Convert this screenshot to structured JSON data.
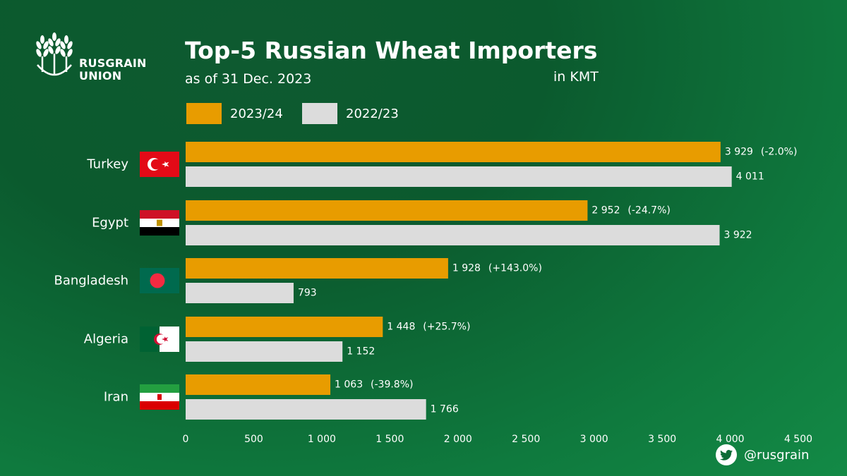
{
  "brand": {
    "line1": "RUSGRAIN",
    "line2": "UNION"
  },
  "header": {
    "title": "Top-5 Russian Wheat Importers",
    "subtitle": "as of 31 Dec. 2023",
    "unit": "in KMT"
  },
  "legend": [
    {
      "label": "2023/24",
      "color": "#e89c00"
    },
    {
      "label": "2022/23",
      "color": "#dcdcdc"
    }
  ],
  "footer": {
    "handle": "@rusgrain",
    "icon": "twitter-icon"
  },
  "chart_data": {
    "type": "bar",
    "orientation": "horizontal",
    "categories": [
      "Turkey",
      "Egypt",
      "Bangladesh",
      "Algeria",
      "Iran"
    ],
    "series": [
      {
        "name": "2023/24",
        "color": "#e89c00",
        "values": [
          3929,
          2952,
          1928,
          1448,
          1063
        ],
        "labels": [
          "3 929",
          "2 952",
          "1 928",
          "1 448",
          "1 063"
        ]
      },
      {
        "name": "2022/23",
        "color": "#dcdcdc",
        "values": [
          4011,
          3922,
          793,
          1152,
          1766
        ],
        "labels": [
          "4 011",
          "3 922",
          "793",
          "1 152",
          "1 766"
        ]
      }
    ],
    "changes": [
      "(-2.0%)",
      "(-24.7%)",
      "(+143.0%)",
      "(+25.7%)",
      "(-39.8%)"
    ],
    "xlim": [
      0,
      4500
    ],
    "xticks": [
      0,
      500,
      1000,
      1500,
      2000,
      2500,
      3000,
      3500,
      4000,
      4500
    ],
    "xtick_labels": [
      "0",
      "500",
      "1 000",
      "1 500",
      "2 000",
      "2 500",
      "3 000",
      "3 500",
      "4 000",
      "4 500"
    ],
    "flags": [
      "turkey-flag-icon",
      "egypt-flag-icon",
      "bangladesh-flag-icon",
      "algeria-flag-icon",
      "iran-flag-icon"
    ],
    "grid": false,
    "legend_position": "top-left"
  }
}
